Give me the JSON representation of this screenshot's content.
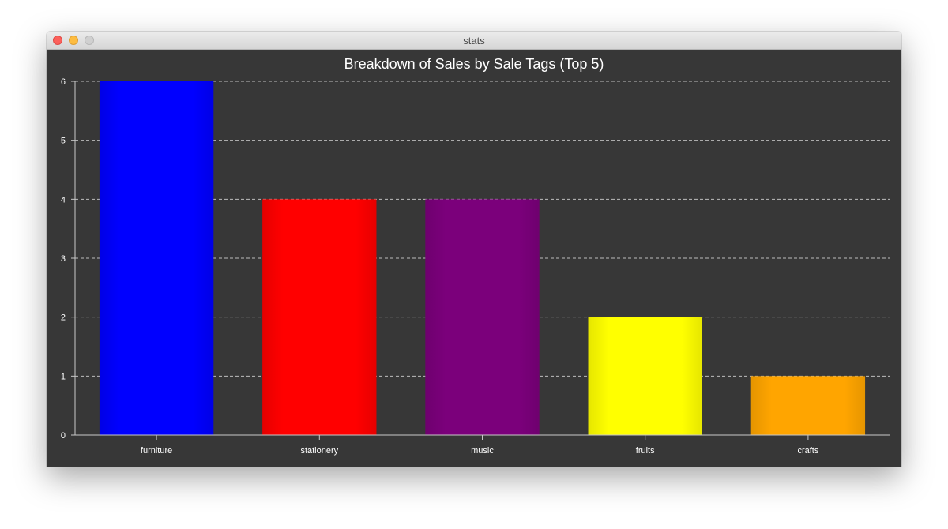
{
  "window": {
    "title": "stats"
  },
  "chart_data": {
    "type": "bar",
    "title": "Breakdown of Sales by Sale Tags (Top 5)",
    "xlabel": "",
    "ylabel": "",
    "categories": [
      "furniture",
      "stationery",
      "music",
      "fruits",
      "crafts"
    ],
    "values": [
      6,
      4,
      4,
      2,
      1
    ],
    "colors": [
      "#0000ff",
      "#ff0000",
      "#7b007b",
      "#ffff00",
      "#ffa500"
    ],
    "ylim": [
      0,
      6
    ],
    "yticks": [
      0,
      1,
      2,
      3,
      4,
      5,
      6
    ],
    "grid": true,
    "legend": "none"
  },
  "colors": {
    "background": "#373737",
    "text": "#ffffff",
    "gridline": "#bdbdbd",
    "axis": "#c8c8c8"
  }
}
